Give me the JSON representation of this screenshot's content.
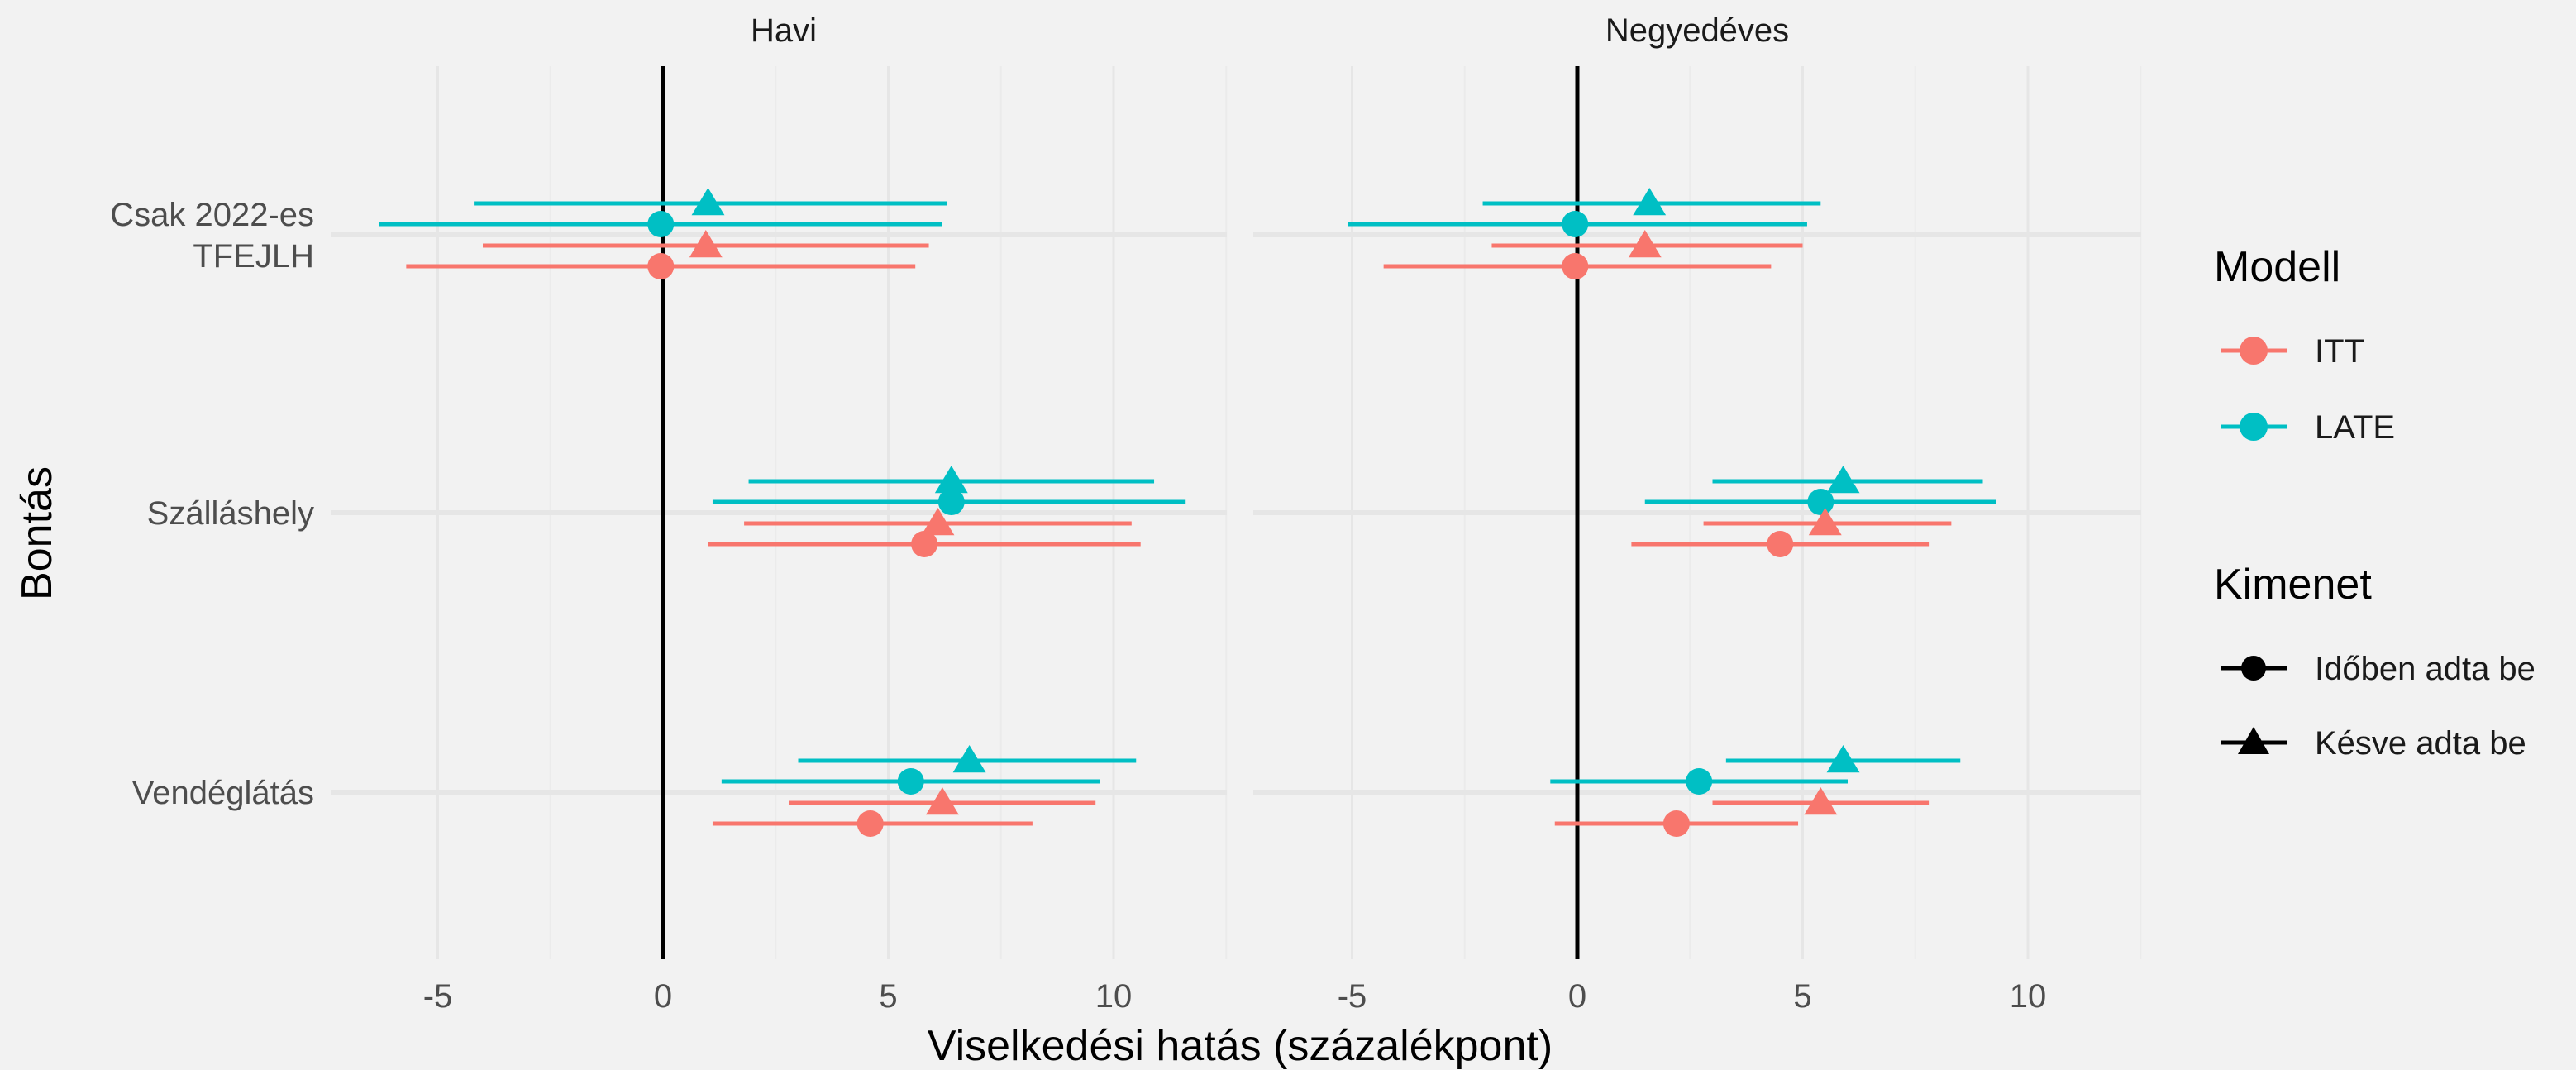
{
  "chart_data": {
    "type": "forest",
    "panels": [
      "Havi",
      "Negyedéves"
    ],
    "categories": [
      "Csak 2022-es TFEJLH",
      "Szálláshely",
      "Vendéglátás"
    ],
    "category_lines": [
      [
        "Csak 2022-es",
        "TFEJLH"
      ],
      [
        "Szálláshely"
      ],
      [
        "Vendéglátás"
      ]
    ],
    "xlabel": "Viselkedési hatás (százalékpont)",
    "ylabel": "Bontás",
    "xlim": [
      -7,
      12.5
    ],
    "xticks": [
      -5,
      0,
      5,
      10
    ],
    "tick_labels": [
      "-5",
      "0",
      "5",
      "10"
    ],
    "grid": true,
    "reference_line": 0,
    "legend_position": "right",
    "legends": {
      "color": {
        "title": "Modell",
        "items": [
          {
            "label": "ITT",
            "key": "ITT"
          },
          {
            "label": "LATE",
            "key": "LATE"
          }
        ]
      },
      "shape": {
        "title": "Kimenet",
        "items": [
          {
            "label": "Időben adta be",
            "key": "ontime"
          },
          {
            "label": "Késve adta be",
            "key": "late"
          }
        ]
      }
    },
    "colors": {
      "ITT": "#F8766D",
      "LATE": "#00BFC4"
    },
    "series": [
      {
        "panel": "Havi",
        "category": "Csak 2022-es TFEJLH",
        "model": "LATE",
        "outcome": "late",
        "estimate": 1.0,
        "low": -4.2,
        "high": 6.3
      },
      {
        "panel": "Havi",
        "category": "Csak 2022-es TFEJLH",
        "model": "LATE",
        "outcome": "ontime",
        "estimate": -0.05,
        "low": -6.3,
        "high": 6.2
      },
      {
        "panel": "Havi",
        "category": "Csak 2022-es TFEJLH",
        "model": "ITT",
        "outcome": "late",
        "estimate": 0.95,
        "low": -4.0,
        "high": 5.9
      },
      {
        "panel": "Havi",
        "category": "Csak 2022-es TFEJLH",
        "model": "ITT",
        "outcome": "ontime",
        "estimate": -0.05,
        "low": -5.7,
        "high": 5.6
      },
      {
        "panel": "Havi",
        "category": "Szálláshely",
        "model": "LATE",
        "outcome": "late",
        "estimate": 6.4,
        "low": 1.9,
        "high": 10.9
      },
      {
        "panel": "Havi",
        "category": "Szálláshely",
        "model": "LATE",
        "outcome": "ontime",
        "estimate": 6.4,
        "low": 1.1,
        "high": 11.6
      },
      {
        "panel": "Havi",
        "category": "Szálláshely",
        "model": "ITT",
        "outcome": "late",
        "estimate": 6.1,
        "low": 1.8,
        "high": 10.4
      },
      {
        "panel": "Havi",
        "category": "Szálláshely",
        "model": "ITT",
        "outcome": "ontime",
        "estimate": 5.8,
        "low": 1.0,
        "high": 10.6
      },
      {
        "panel": "Havi",
        "category": "Vendéglátás",
        "model": "LATE",
        "outcome": "late",
        "estimate": 6.8,
        "low": 3.0,
        "high": 10.5
      },
      {
        "panel": "Havi",
        "category": "Vendéglátás",
        "model": "LATE",
        "outcome": "ontime",
        "estimate": 5.5,
        "low": 1.3,
        "high": 9.7
      },
      {
        "panel": "Havi",
        "category": "Vendéglátás",
        "model": "ITT",
        "outcome": "late",
        "estimate": 6.2,
        "low": 2.8,
        "high": 9.6
      },
      {
        "panel": "Havi",
        "category": "Vendéglátás",
        "model": "ITT",
        "outcome": "ontime",
        "estimate": 4.6,
        "low": 1.1,
        "high": 8.2
      },
      {
        "panel": "Negyedéves",
        "category": "Csak 2022-es TFEJLH",
        "model": "LATE",
        "outcome": "late",
        "estimate": 1.6,
        "low": -2.1,
        "high": 5.4
      },
      {
        "panel": "Negyedéves",
        "category": "Csak 2022-es TFEJLH",
        "model": "LATE",
        "outcome": "ontime",
        "estimate": -0.05,
        "low": -5.1,
        "high": 5.1
      },
      {
        "panel": "Negyedéves",
        "category": "Csak 2022-es TFEJLH",
        "model": "ITT",
        "outcome": "late",
        "estimate": 1.5,
        "low": -1.9,
        "high": 5.0
      },
      {
        "panel": "Negyedéves",
        "category": "Csak 2022-es TFEJLH",
        "model": "ITT",
        "outcome": "ontime",
        "estimate": -0.05,
        "low": -4.3,
        "high": 4.3
      },
      {
        "panel": "Negyedéves",
        "category": "Szálláshely",
        "model": "LATE",
        "outcome": "late",
        "estimate": 5.9,
        "low": 3.0,
        "high": 9.0
      },
      {
        "panel": "Negyedéves",
        "category": "Szálláshely",
        "model": "LATE",
        "outcome": "ontime",
        "estimate": 5.4,
        "low": 1.5,
        "high": 9.3
      },
      {
        "panel": "Negyedéves",
        "category": "Szálláshely",
        "model": "ITT",
        "outcome": "late",
        "estimate": 5.5,
        "low": 2.8,
        "high": 8.3
      },
      {
        "panel": "Negyedéves",
        "category": "Szálláshely",
        "model": "ITT",
        "outcome": "ontime",
        "estimate": 4.5,
        "low": 1.2,
        "high": 7.8
      },
      {
        "panel": "Negyedéves",
        "category": "Vendéglátás",
        "model": "LATE",
        "outcome": "late",
        "estimate": 5.9,
        "low": 3.3,
        "high": 8.5
      },
      {
        "panel": "Negyedéves",
        "category": "Vendéglátás",
        "model": "LATE",
        "outcome": "ontime",
        "estimate": 2.7,
        "low": -0.6,
        "high": 6.0
      },
      {
        "panel": "Negyedéves",
        "category": "Vendéglátás",
        "model": "ITT",
        "outcome": "late",
        "estimate": 5.4,
        "low": 3.0,
        "high": 7.8
      },
      {
        "panel": "Negyedéves",
        "category": "Vendéglátás",
        "model": "ITT",
        "outcome": "ontime",
        "estimate": 2.2,
        "low": -0.5,
        "high": 4.9
      }
    ]
  }
}
